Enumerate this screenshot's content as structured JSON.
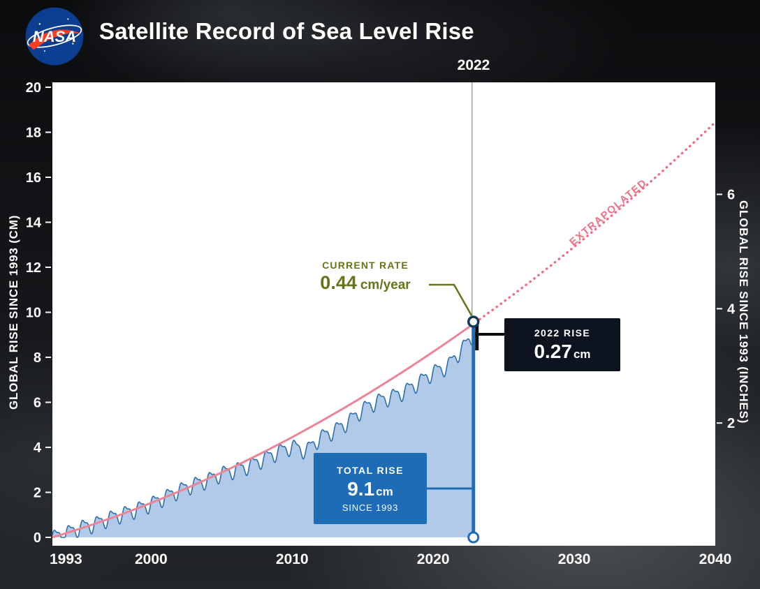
{
  "header": {
    "logo": "NASA",
    "title": "Satellite Record of Sea Level Rise"
  },
  "chart_data": {
    "type": "area",
    "title": "Satellite Record of Sea Level Rise",
    "x_axis": {
      "ticks": [
        1993,
        2000,
        2010,
        2020,
        2030,
        2040
      ],
      "range": [
        1993,
        2040
      ]
    },
    "y_axis_left": {
      "label": "GLOBAL RISE SINCE 1993 (CM)",
      "ticks": [
        0,
        2,
        4,
        6,
        8,
        10,
        12,
        14,
        16,
        18,
        20
      ],
      "range": [
        0,
        20
      ],
      "units": "cm"
    },
    "y_axis_right": {
      "label": "GLOBAL RISE SINCE 1993 (INCHES)",
      "ticks": [
        2,
        4,
        6
      ],
      "units": "inches",
      "cm_per_inch": 2.54
    },
    "series": [
      {
        "name": "observed-sea-level",
        "type": "area",
        "color_fill": "#a9c6e6",
        "color_line": "#2e6fad",
        "seasonal_amplitude": 0.3,
        "points_yearly": [
          [
            1993,
            0.0
          ],
          [
            1994,
            0.2
          ],
          [
            1995,
            0.45
          ],
          [
            1996,
            0.6
          ],
          [
            1997,
            0.85
          ],
          [
            1998,
            1.05
          ],
          [
            1999,
            1.25
          ],
          [
            2000,
            1.5
          ],
          [
            2001,
            1.8
          ],
          [
            2002,
            2.1
          ],
          [
            2003,
            2.35
          ],
          [
            2004,
            2.55
          ],
          [
            2005,
            2.85
          ],
          [
            2006,
            3.0
          ],
          [
            2007,
            3.2
          ],
          [
            2008,
            3.5
          ],
          [
            2009,
            3.8
          ],
          [
            2010,
            4.05
          ],
          [
            2011,
            3.85
          ],
          [
            2012,
            4.45
          ],
          [
            2013,
            4.75
          ],
          [
            2014,
            5.15
          ],
          [
            2015,
            5.7
          ],
          [
            2016,
            6.05
          ],
          [
            2017,
            6.25
          ],
          [
            2018,
            6.5
          ],
          [
            2019,
            6.9
          ],
          [
            2020,
            7.35
          ],
          [
            2021,
            7.6
          ],
          [
            2022,
            8.35
          ],
          [
            2023,
            9.1
          ]
        ]
      },
      {
        "name": "trend",
        "type": "line",
        "color": "#ec8496",
        "quadratic": {
          "a": 0.188,
          "b": 0.00435,
          "t0": 1993
        },
        "year_range": [
          1993,
          2023
        ]
      },
      {
        "name": "extrapolated",
        "type": "dotted-line",
        "color": "#ef6c82",
        "year_range": [
          2023,
          2040
        ],
        "value_at_2040_cm": 18.4
      }
    ],
    "marker_year": 2022,
    "annotations": {
      "marker_year_label": "2022",
      "current_rate_label": "CURRENT RATE",
      "current_rate_value": "0.44",
      "current_rate_units": "cm/year",
      "rise_2022_label": "2022 RISE",
      "rise_2022_value": "0.27",
      "rise_2022_units": "cm",
      "total_rise_label": "TOTAL RISE",
      "total_rise_value": "9.1",
      "total_rise_units": "cm",
      "total_rise_sub": "SINCE 1993",
      "extrapolated_label": "EXTRAPOLATED"
    }
  }
}
